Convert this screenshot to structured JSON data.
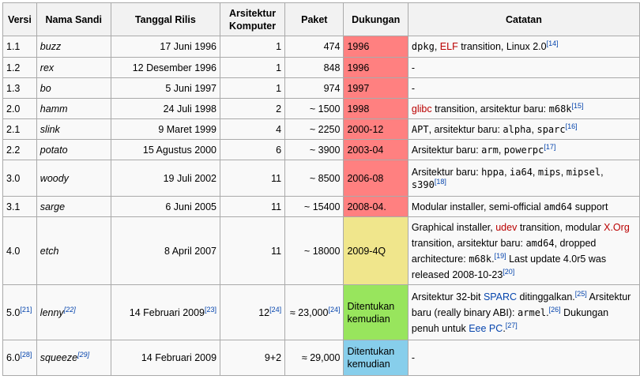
{
  "headers": {
    "versi": "Versi",
    "nama_sandi": "Nama Sandi",
    "tanggal": "Tanggal Rilis",
    "arsitektur": "Arsitektur Komputer",
    "paket": "Paket",
    "dukungan": "Dukungan",
    "catatan": "Catatan"
  },
  "colors": {
    "red": "#ff8080",
    "yellow": "#f0e68c",
    "green": "#98e55d",
    "blue": "#87ceeb"
  },
  "rows": [
    {
      "ver": "1.1",
      "name": "buzz",
      "date": "17 Juni 1996",
      "arch": "1",
      "pkg": "474",
      "sup": "1996",
      "note": {
        "a": "dpkg",
        "b": ", ",
        "c": "ELF",
        "d": " transition, Linux 2.0",
        "ref": "[14]"
      }
    },
    {
      "ver": "1.2",
      "name": "rex",
      "date": "12 Desember 1996",
      "arch": "1",
      "pkg": "848",
      "sup": "1996",
      "note": "-"
    },
    {
      "ver": "1.3",
      "name": "bo",
      "date": "5 Juni 1997",
      "arch": "1",
      "pkg": "974",
      "sup": "1997",
      "note": "-"
    },
    {
      "ver": "2.0",
      "name": "hamm",
      "date": "24 Juli 1998",
      "arch": "2",
      "pkg": "~ 1500",
      "sup": "1998",
      "note": {
        "a": "glibc",
        "b": " transition, arsitektur baru: ",
        "c": "m68k",
        "ref": "[15]"
      }
    },
    {
      "ver": "2.1",
      "name": "slink",
      "date": "9 Maret 1999",
      "arch": "4",
      "pkg": "~ 2250",
      "sup": "2000-12",
      "note": {
        "a": "APT",
        "b": ", arsitektur baru: ",
        "c": "alpha",
        "d": ", ",
        "e": "sparc",
        "ref": "[16]"
      }
    },
    {
      "ver": "2.2",
      "name": "potato",
      "date": "15 Agustus 2000",
      "arch": "6",
      "pkg": "~ 3900",
      "sup": "2003-04",
      "note": {
        "a": "Arsitektur baru: ",
        "b": "arm",
        "c": ", ",
        "d": "powerpc",
        "ref": "[17]"
      }
    },
    {
      "ver": "3.0",
      "name": "woody",
      "date": "19 Juli 2002",
      "arch": "11",
      "pkg": "~ 8500",
      "sup": "2006-08",
      "note": {
        "a": "Arsitektur baru: ",
        "b": "hppa",
        "c": ", ",
        "d": "ia64",
        "e": ", ",
        "f": "mips",
        "g": ", ",
        "h": "mipsel",
        "i": ", ",
        "j": "s390",
        "ref": "[18]"
      }
    },
    {
      "ver": "3.1",
      "name": "sarge",
      "date": "6 Juni 2005",
      "arch": "11",
      "pkg": "~ 15400",
      "sup": "2008-04.",
      "note": {
        "a": "Modular installer, semi-official ",
        "b": "amd64",
        "c": " support"
      }
    },
    {
      "ver": "4.0",
      "name": "etch",
      "date": "8 April 2007",
      "arch": "11",
      "pkg": "~ 18000",
      "sup": "2009-4Q",
      "note": {
        "a": "Graphical installer, ",
        "b": "udev",
        "c": " transition, modular ",
        "d": "X.Org",
        "e": " transition, arsitektur baru: ",
        "f": "amd64",
        "g": ", dropped architecture: ",
        "h": "m68k",
        "i": ".",
        "ref1": "[19]",
        "j": " Last update 4.0r5 was released 2008-10-23",
        "ref2": "[20]"
      }
    },
    {
      "ver": "5.0",
      "ver_ref": "[21]",
      "name": "lenny",
      "name_ref": "[22]",
      "date": "14 Februari 2009",
      "date_ref": "[23]",
      "arch": "12",
      "arch_ref": "[24]",
      "pkg": "≈ 23,000",
      "pkg_ref": "[24]",
      "sup": "Ditentukan kemudian",
      "note": {
        "a": "Arsitektur 32-bit ",
        "b": "SPARC",
        "c": " ditinggalkan.",
        "ref1": "[25]",
        "d": " Arsitektur baru (really binary ABI): ",
        "e": "armel",
        "f": ".",
        "ref2": "[26]",
        "g": " Dukungan penuh untuk ",
        "h": "Eee PC",
        "i": ".",
        "ref3": "[27]"
      }
    },
    {
      "ver": "6.0",
      "ver_ref": "[28]",
      "name": "squeeze",
      "name_ref": "[29]",
      "date": "14 Februari 2009",
      "arch": "9+2",
      "pkg": "≈ 29,000",
      "sup": "Ditentukan kemudian",
      "note": "-"
    }
  ]
}
